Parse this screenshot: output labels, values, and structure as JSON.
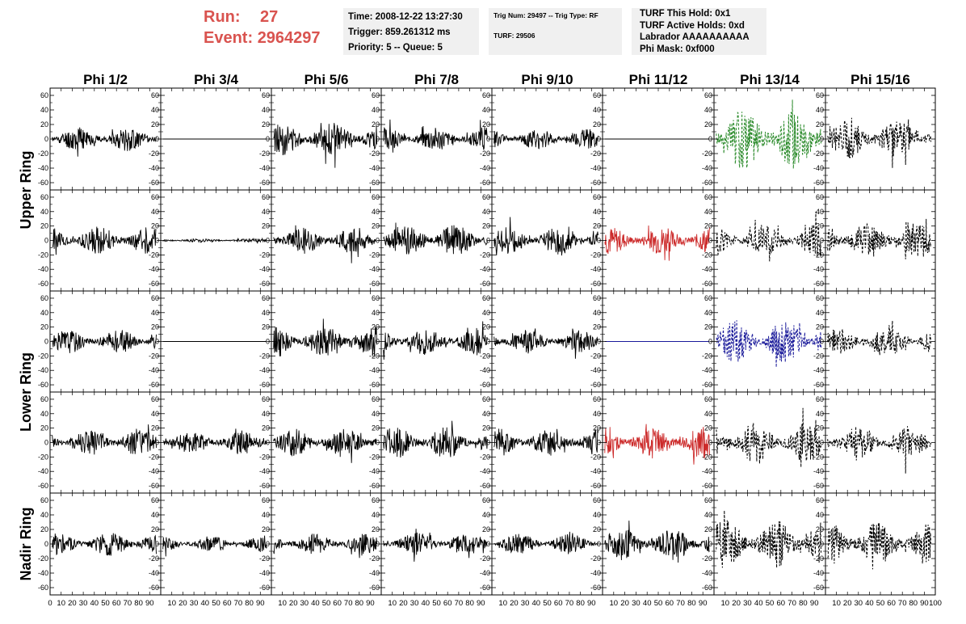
{
  "header": {
    "run_label": "Run:",
    "run_value": "27",
    "event_label": "Event:",
    "event_value": "2964297"
  },
  "info_box_1": {
    "time": "Time: 2008-12-22 13:27:30",
    "trigger": "Trigger: 859.261312 ms",
    "priority": "Priority: 5 -- Queue: 5"
  },
  "info_box_2": {
    "trig": "Trig Num: 29497 -- Trig Type: RF",
    "turf": "TURF: 29506"
  },
  "info_box_3": {
    "this_hold": "TURF This Hold: 0x1",
    "active_holds": "TURF Active Holds: 0xd",
    "labrador": "Labrador AAAAAAAAAA",
    "phi_mask": "Phi Mask: 0xf000"
  },
  "colors": {
    "trace_default": "#000000",
    "trace_green": "#2a8a2a",
    "trace_red": "#cc2a2a",
    "trace_blue": "#1a1a9a",
    "header_red": "#d9534f",
    "info_bg": "#f0f0f0"
  },
  "chart_data": {
    "type": "line",
    "columns": [
      "Phi 1/2",
      "Phi 3/4",
      "Phi 5/6",
      "Phi 7/8",
      "Phi 9/10",
      "Phi 11/12",
      "Phi 13/14",
      "Phi 15/16"
    ],
    "row_labels": [
      "Upper Ring",
      "Lower Ring",
      "Nadir Ring"
    ],
    "ylim": [
      -70,
      70
    ],
    "yticks": [
      -60,
      -40,
      -20,
      0,
      20,
      40,
      60
    ],
    "xlim": [
      0,
      100
    ],
    "xticks": [
      0,
      10,
      20,
      30,
      40,
      50,
      60,
      70,
      80,
      90,
      100
    ],
    "panels": [
      {
        "row": 0,
        "col": 0,
        "amplitude": 12,
        "style": "solid",
        "color": "trace_default",
        "seed": 11
      },
      {
        "row": 0,
        "col": 1,
        "amplitude": 0,
        "style": "solid",
        "color": "trace_default",
        "seed": 12
      },
      {
        "row": 0,
        "col": 2,
        "amplitude": 16,
        "style": "solid",
        "color": "trace_default",
        "seed": 13
      },
      {
        "row": 0,
        "col": 3,
        "amplitude": 12,
        "style": "solid",
        "color": "trace_default",
        "seed": 14
      },
      {
        "row": 0,
        "col": 4,
        "amplitude": 10,
        "style": "solid",
        "color": "trace_default",
        "seed": 15
      },
      {
        "row": 0,
        "col": 5,
        "amplitude": 0,
        "style": "solid",
        "color": "trace_default",
        "seed": 16
      },
      {
        "row": 0,
        "col": 6,
        "amplitude": 30,
        "style": "dashed",
        "color": "trace_green",
        "seed": 17
      },
      {
        "row": 0,
        "col": 7,
        "amplitude": 20,
        "style": "dashed",
        "color": "trace_default",
        "seed": 18
      },
      {
        "row": 1,
        "col": 0,
        "amplitude": 14,
        "style": "solid",
        "color": "trace_default",
        "seed": 21
      },
      {
        "row": 1,
        "col": 1,
        "amplitude": 2,
        "style": "solid",
        "color": "trace_default",
        "seed": 22
      },
      {
        "row": 1,
        "col": 2,
        "amplitude": 14,
        "style": "solid",
        "color": "trace_default",
        "seed": 23
      },
      {
        "row": 1,
        "col": 3,
        "amplitude": 16,
        "style": "solid",
        "color": "trace_default",
        "seed": 24
      },
      {
        "row": 1,
        "col": 4,
        "amplitude": 14,
        "style": "solid",
        "color": "trace_default",
        "seed": 25
      },
      {
        "row": 1,
        "col": 5,
        "amplitude": 14,
        "style": "solid",
        "color": "trace_red",
        "seed": 26
      },
      {
        "row": 1,
        "col": 6,
        "amplitude": 16,
        "style": "dashed",
        "color": "trace_default",
        "seed": 27
      },
      {
        "row": 1,
        "col": 7,
        "amplitude": 18,
        "style": "dashed",
        "color": "trace_default",
        "seed": 28
      },
      {
        "row": 2,
        "col": 0,
        "amplitude": 12,
        "style": "solid",
        "color": "trace_default",
        "seed": 31
      },
      {
        "row": 2,
        "col": 1,
        "amplitude": 0,
        "style": "solid",
        "color": "trace_default",
        "seed": 32
      },
      {
        "row": 2,
        "col": 2,
        "amplitude": 16,
        "style": "solid",
        "color": "trace_default",
        "seed": 33
      },
      {
        "row": 2,
        "col": 3,
        "amplitude": 14,
        "style": "solid",
        "color": "trace_default",
        "seed": 34
      },
      {
        "row": 2,
        "col": 4,
        "amplitude": 12,
        "style": "solid",
        "color": "trace_default",
        "seed": 35
      },
      {
        "row": 2,
        "col": 5,
        "amplitude": 0,
        "style": "solid",
        "color": "trace_blue",
        "seed": 36
      },
      {
        "row": 2,
        "col": 6,
        "amplitude": 22,
        "style": "dashed",
        "color": "trace_blue",
        "seed": 37
      },
      {
        "row": 2,
        "col": 7,
        "amplitude": 14,
        "style": "dashed",
        "color": "trace_default",
        "seed": 38
      },
      {
        "row": 3,
        "col": 0,
        "amplitude": 14,
        "style": "solid",
        "color": "trace_default",
        "seed": 41
      },
      {
        "row": 3,
        "col": 1,
        "amplitude": 12,
        "style": "solid",
        "color": "trace_default",
        "seed": 42
      },
      {
        "row": 3,
        "col": 2,
        "amplitude": 14,
        "style": "solid",
        "color": "trace_default",
        "seed": 43
      },
      {
        "row": 3,
        "col": 3,
        "amplitude": 16,
        "style": "solid",
        "color": "trace_default",
        "seed": 44
      },
      {
        "row": 3,
        "col": 4,
        "amplitude": 14,
        "style": "solid",
        "color": "trace_default",
        "seed": 45
      },
      {
        "row": 3,
        "col": 5,
        "amplitude": 16,
        "style": "solid",
        "color": "trace_red",
        "seed": 46
      },
      {
        "row": 3,
        "col": 6,
        "amplitude": 20,
        "style": "dashed",
        "color": "trace_default",
        "seed": 47
      },
      {
        "row": 3,
        "col": 7,
        "amplitude": 18,
        "style": "dashed",
        "color": "trace_default",
        "seed": 48
      },
      {
        "row": 4,
        "col": 0,
        "amplitude": 12,
        "style": "solid",
        "color": "trace_default",
        "seed": 51
      },
      {
        "row": 4,
        "col": 1,
        "amplitude": 8,
        "style": "solid",
        "color": "trace_default",
        "seed": 52
      },
      {
        "row": 4,
        "col": 2,
        "amplitude": 10,
        "style": "solid",
        "color": "trace_default",
        "seed": 53
      },
      {
        "row": 4,
        "col": 3,
        "amplitude": 12,
        "style": "solid",
        "color": "trace_default",
        "seed": 54
      },
      {
        "row": 4,
        "col": 4,
        "amplitude": 10,
        "style": "solid",
        "color": "trace_default",
        "seed": 55
      },
      {
        "row": 4,
        "col": 5,
        "amplitude": 16,
        "style": "solid",
        "color": "trace_default",
        "seed": 56
      },
      {
        "row": 4,
        "col": 6,
        "amplitude": 24,
        "style": "dashed",
        "color": "trace_default",
        "seed": 57
      },
      {
        "row": 4,
        "col": 7,
        "amplitude": 22,
        "style": "dashed",
        "color": "trace_default",
        "seed": 58
      }
    ]
  }
}
